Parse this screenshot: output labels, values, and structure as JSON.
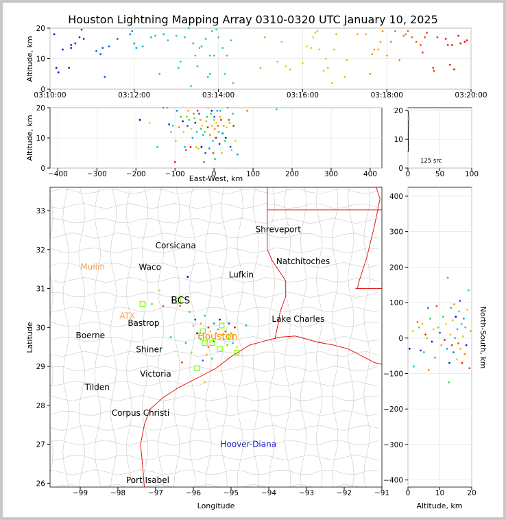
{
  "title": "Houston Lightning Mapping Array 0310-0320 UTC January 10, 2025",
  "source_count_label": "125 src",
  "colors": {
    "map_border": "#c8c8c8",
    "coast": "#e00000",
    "station": "#7cfc00",
    "storm": "#2020cc",
    "city_highlight": "#ff8c00",
    "grid": "#e6e6e6"
  },
  "chart_data": [
    {
      "id": "time_height",
      "type": "scatter",
      "xlabel": "",
      "ylabel": "Altitude, km",
      "x_ticks": [
        "03:10:00",
        "03:12:00",
        "03:14:00",
        "03:16:00",
        "03:18:00",
        "03:20:00"
      ],
      "y_ticks": [
        "0",
        "10",
        "20"
      ],
      "xlim_minutes": [
        0,
        10
      ],
      "ylim": [
        0,
        20
      ],
      "grid": true,
      "points": [
        [
          0.1,
          18
        ],
        [
          0.15,
          7
        ],
        [
          0.2,
          5.5
        ],
        [
          0.3,
          13
        ],
        [
          0.45,
          7
        ],
        [
          0.5,
          13.5
        ],
        [
          0.5,
          14.5
        ],
        [
          0.6,
          15
        ],
        [
          0.7,
          17
        ],
        [
          0.75,
          19.5
        ],
        [
          0.8,
          16.5
        ],
        [
          1.0,
          22
        ],
        [
          1.1,
          12.5
        ],
        [
          1.2,
          11.5
        ],
        [
          1.25,
          13.5
        ],
        [
          1.3,
          4
        ],
        [
          1.4,
          14
        ],
        [
          1.6,
          16.5
        ],
        [
          1.9,
          18
        ],
        [
          1.95,
          19
        ],
        [
          2.0,
          15
        ],
        [
          2.05,
          13.5
        ],
        [
          2.2,
          14
        ],
        [
          2.4,
          17
        ],
        [
          2.5,
          17.5
        ],
        [
          2.55,
          21
        ],
        [
          2.6,
          5
        ],
        [
          2.7,
          18
        ],
        [
          2.8,
          16
        ],
        [
          3.0,
          17.5
        ],
        [
          3.05,
          7
        ],
        [
          3.1,
          9
        ],
        [
          3.2,
          17
        ],
        [
          3.3,
          20
        ],
        [
          3.35,
          1
        ],
        [
          3.4,
          15
        ],
        [
          3.45,
          11
        ],
        [
          3.5,
          7.5
        ],
        [
          3.55,
          13.5
        ],
        [
          3.6,
          14
        ],
        [
          3.7,
          16.5
        ],
        [
          3.75,
          4
        ],
        [
          3.8,
          5
        ],
        [
          3.8,
          11
        ],
        [
          3.85,
          19
        ],
        [
          3.9,
          11
        ],
        [
          3.95,
          19.5
        ],
        [
          4.0,
          17
        ],
        [
          4.1,
          13.5
        ],
        [
          4.15,
          5
        ],
        [
          4.2,
          11
        ],
        [
          4.3,
          16
        ],
        [
          4.35,
          2
        ],
        [
          5.0,
          7
        ],
        [
          5.1,
          17
        ],
        [
          5.4,
          9
        ],
        [
          5.5,
          15.5
        ],
        [
          5.6,
          7.5
        ],
        [
          5.7,
          6.5
        ],
        [
          6.0,
          8.5
        ],
        [
          6.1,
          14
        ],
        [
          6.2,
          13.5
        ],
        [
          6.25,
          17
        ],
        [
          6.3,
          18.5
        ],
        [
          6.35,
          19
        ],
        [
          6.4,
          13
        ],
        [
          6.5,
          6
        ],
        [
          6.55,
          10
        ],
        [
          6.6,
          7
        ],
        [
          6.7,
          2
        ],
        [
          6.75,
          13
        ],
        [
          6.8,
          18
        ],
        [
          7.0,
          4
        ],
        [
          7.05,
          9.5
        ],
        [
          7.3,
          18
        ],
        [
          7.5,
          18
        ],
        [
          7.6,
          5
        ],
        [
          7.65,
          11.5
        ],
        [
          7.7,
          13
        ],
        [
          7.8,
          13
        ],
        [
          7.85,
          15.5
        ],
        [
          7.9,
          19
        ],
        [
          8.0,
          11
        ],
        [
          8.1,
          15.5
        ],
        [
          8.2,
          19
        ],
        [
          8.3,
          9.5
        ],
        [
          8.4,
          17.5
        ],
        [
          8.45,
          18
        ],
        [
          8.5,
          19
        ],
        [
          8.6,
          17
        ],
        [
          8.7,
          15.5
        ],
        [
          8.8,
          14.5
        ],
        [
          8.85,
          12
        ],
        [
          8.9,
          17
        ],
        [
          8.95,
          18.5
        ],
        [
          9.1,
          7
        ],
        [
          9.12,
          6
        ],
        [
          9.2,
          17
        ],
        [
          9.4,
          16.5
        ],
        [
          9.45,
          14.5
        ],
        [
          9.5,
          8
        ],
        [
          9.55,
          14.5
        ],
        [
          9.6,
          6.5
        ],
        [
          9.7,
          17.5
        ],
        [
          9.75,
          15
        ],
        [
          9.85,
          15.5
        ],
        [
          9.9,
          16
        ]
      ]
    },
    {
      "id": "ew_height",
      "type": "scatter",
      "xlabel": "East-West, km",
      "ylabel": "Altitude, km",
      "x_ticks": [
        "−400",
        "−300",
        "−200",
        "−100",
        "0",
        "100",
        "200",
        "300",
        "400"
      ],
      "y_ticks": [
        "0",
        "10",
        "20"
      ],
      "xlim": [
        -420,
        430
      ],
      "ylim": [
        0,
        20
      ],
      "grid": true,
      "points": [
        [
          -190,
          16
        ],
        [
          -165,
          15
        ],
        [
          -145,
          7
        ],
        [
          -130,
          20
        ],
        [
          -120,
          20
        ],
        [
          -115,
          14.5
        ],
        [
          -110,
          12
        ],
        [
          -105,
          14
        ],
        [
          -100,
          2
        ],
        [
          -98,
          9
        ],
        [
          -95,
          19
        ],
        [
          -90,
          13.5
        ],
        [
          -85,
          17
        ],
        [
          -80,
          15.5
        ],
        [
          -78,
          12
        ],
        [
          -75,
          7
        ],
        [
          -72,
          6
        ],
        [
          -70,
          17
        ],
        [
          -68,
          14
        ],
        [
          -66,
          19
        ],
        [
          -64,
          16
        ],
        [
          -60,
          7
        ],
        [
          -58,
          13
        ],
        [
          -55,
          10
        ],
        [
          -52,
          18
        ],
        [
          -50,
          16.5
        ],
        [
          -48,
          15
        ],
        [
          -46,
          7
        ],
        [
          -44,
          12
        ],
        [
          -42,
          19
        ],
        [
          -40,
          6.5
        ],
        [
          -38,
          18
        ],
        [
          -35,
          16
        ],
        [
          -33,
          13
        ],
        [
          -32,
          7
        ],
        [
          -30,
          14
        ],
        [
          -28,
          11
        ],
        [
          -26,
          2
        ],
        [
          -24,
          12
        ],
        [
          -22,
          5
        ],
        [
          -20,
          15.5
        ],
        [
          -18,
          17
        ],
        [
          -16,
          13.5
        ],
        [
          -15,
          20
        ],
        [
          -12,
          6.5
        ],
        [
          -10,
          11
        ],
        [
          -8,
          18
        ],
        [
          -6,
          19
        ],
        [
          -5,
          14
        ],
        [
          -3,
          9
        ],
        [
          -2,
          5
        ],
        [
          0,
          16
        ],
        [
          1,
          17
        ],
        [
          2,
          13
        ],
        [
          3,
          3
        ],
        [
          5,
          10
        ],
        [
          6,
          15
        ],
        [
          8,
          19
        ],
        [
          10,
          14
        ],
        [
          12,
          12
        ],
        [
          14,
          8
        ],
        [
          15,
          17
        ],
        [
          16,
          19
        ],
        [
          18,
          16
        ],
        [
          20,
          5
        ],
        [
          22,
          11.5
        ],
        [
          25,
          14
        ],
        [
          28,
          9
        ],
        [
          30,
          10
        ],
        [
          32,
          13.5
        ],
        [
          35,
          20
        ],
        [
          38,
          16
        ],
        [
          40,
          15
        ],
        [
          42,
          7
        ],
        [
          45,
          6
        ],
        [
          48,
          18
        ],
        [
          50,
          14
        ],
        [
          55,
          9
        ],
        [
          60,
          4.5
        ],
        [
          85,
          19
        ],
        [
          160,
          19.5
        ]
      ]
    },
    {
      "id": "height_histogram",
      "type": "bar",
      "xlabel": "",
      "ylabel": "",
      "x_ticks": [
        "0",
        "50",
        "100"
      ],
      "y_ticks": [
        "0",
        "10",
        "20"
      ],
      "xlim": [
        0,
        100
      ],
      "ylim": [
        0,
        21
      ],
      "grid": true,
      "annotation": "125 src",
      "bins": [
        [
          6,
          0.5
        ],
        [
          7,
          0.8
        ],
        [
          8,
          0.6
        ],
        [
          12,
          0.4
        ],
        [
          13,
          1.0
        ],
        [
          14,
          0.8
        ],
        [
          15,
          1.2
        ],
        [
          16,
          0.7
        ],
        [
          17,
          1.5
        ],
        [
          18,
          1.2
        ],
        [
          19,
          1.0
        ]
      ]
    },
    {
      "id": "plan_view",
      "type": "scatter",
      "xlabel": "Longitude",
      "ylabel": "Latitude",
      "x_ticks": [
        "−99",
        "−98",
        "−97",
        "−96",
        "−95",
        "−94",
        "−93",
        "−92",
        "−91"
      ],
      "y_ticks": [
        "26",
        "27",
        "28",
        "29",
        "30",
        "31",
        "32",
        "33"
      ],
      "xlim": [
        -99.8,
        -91
      ],
      "ylim": [
        25.9,
        33.6
      ],
      "grid": false,
      "cities": [
        {
          "name": "Shreveport",
          "lon": -93.75,
          "lat": 32.52
        },
        {
          "name": "Corsicana",
          "lon": -96.47,
          "lat": 32.1
        },
        {
          "name": "Mullin",
          "lon": -98.67,
          "lat": 31.56
        },
        {
          "name": "Waco",
          "lon": -97.15,
          "lat": 31.55
        },
        {
          "name": "Natchitoches",
          "lon": -93.09,
          "lat": 31.7
        },
        {
          "name": "Lufkin",
          "lon": -94.73,
          "lat": 31.35
        },
        {
          "name": "BCS",
          "lon": -96.34,
          "lat": 30.68
        },
        {
          "name": "ATX",
          "lon": -97.75,
          "lat": 30.3
        },
        {
          "name": "Bastrop",
          "lon": -97.32,
          "lat": 30.11
        },
        {
          "name": "Lake Charles",
          "lon": -93.22,
          "lat": 30.22
        },
        {
          "name": "Boerne",
          "lon": -98.73,
          "lat": 29.79
        },
        {
          "name": "Houston",
          "lon": -95.36,
          "lat": 29.76
        },
        {
          "name": "Shiner",
          "lon": -97.17,
          "lat": 29.43
        },
        {
          "name": "Victoria",
          "lon": -97.0,
          "lat": 28.81
        },
        {
          "name": "Tilden",
          "lon": -98.55,
          "lat": 28.46
        },
        {
          "name": "Corpus Christi",
          "lon": -97.4,
          "lat": 27.8
        },
        {
          "name": "Hoover-Diana",
          "lon": -94.54,
          "lat": 27.0
        },
        {
          "name": "Port Isabel",
          "lon": -97.21,
          "lat": 26.08
        }
      ],
      "stations": [
        [
          -97.35,
          30.6
        ],
        [
          -96.4,
          30.68
        ],
        [
          -95.75,
          29.9
        ],
        [
          -95.25,
          30.05
        ],
        [
          -95.5,
          29.6
        ],
        [
          -95.3,
          29.45
        ],
        [
          -95.7,
          29.6
        ],
        [
          -95.0,
          29.75
        ],
        [
          -94.85,
          29.35
        ],
        [
          -95.9,
          28.95
        ]
      ],
      "points": [
        [
          -96.15,
          31.3
        ],
        [
          -96.9,
          30.95
        ],
        [
          -96.55,
          30.7
        ],
        [
          -96.35,
          30.55
        ],
        [
          -96.1,
          30.4
        ],
        [
          -95.95,
          30.2
        ],
        [
          -95.8,
          30.1
        ],
        [
          -95.7,
          30.3
        ],
        [
          -95.6,
          30.0
        ],
        [
          -95.55,
          29.9
        ],
        [
          -95.45,
          30.1
        ],
        [
          -95.4,
          29.85
        ],
        [
          -95.35,
          29.95
        ],
        [
          -95.3,
          30.2
        ],
        [
          -95.25,
          29.8
        ],
        [
          -95.2,
          29.7
        ],
        [
          -95.15,
          29.9
        ],
        [
          -95.1,
          29.55
        ],
        [
          -95.05,
          30.1
        ],
        [
          -95.0,
          29.85
        ],
        [
          -94.95,
          29.6
        ],
        [
          -94.9,
          30.0
        ],
        [
          -94.85,
          29.5
        ],
        [
          -94.6,
          30.05
        ],
        [
          -95.6,
          29.5
        ],
        [
          -95.8,
          29.7
        ],
        [
          -95.9,
          29.85
        ],
        [
          -96.0,
          30.05
        ],
        [
          -96.2,
          29.6
        ],
        [
          -96.3,
          29.1
        ],
        [
          -96.05,
          29.35
        ],
        [
          -95.75,
          29.15
        ],
        [
          -95.65,
          29.3
        ],
        [
          -95.5,
          29.2
        ],
        [
          -95.45,
          29.65
        ],
        [
          -95.7,
          28.6
        ],
        [
          -96.6,
          29.75
        ],
        [
          -96.8,
          30.55
        ],
        [
          -97.1,
          30.6
        ]
      ]
    },
    {
      "id": "height_northsouth",
      "type": "scatter",
      "xlabel": "Altitude, km",
      "ylabel": "North-South, km",
      "x_ticks": [
        "0",
        "10",
        "20"
      ],
      "y_ticks": [
        "−400",
        "−300",
        "−200",
        "−100",
        "0",
        "100",
        "200",
        "300",
        "400"
      ],
      "xlim": [
        0,
        20
      ],
      "ylim": [
        -420,
        425
      ],
      "grid": true,
      "points": [
        [
          0.5,
          -30
        ],
        [
          1.5,
          20
        ],
        [
          1.8,
          -80
        ],
        [
          3,
          45
        ],
        [
          3.5,
          30
        ],
        [
          4,
          -35
        ],
        [
          4.5,
          40
        ],
        [
          5,
          -40
        ],
        [
          5.5,
          10
        ],
        [
          6,
          0
        ],
        [
          6.3,
          85
        ],
        [
          6.5,
          -90
        ],
        [
          7,
          55
        ],
        [
          7.5,
          -10
        ],
        [
          8,
          25
        ],
        [
          8.5,
          -55
        ],
        [
          9,
          90
        ],
        [
          9.5,
          30
        ],
        [
          10,
          15
        ],
        [
          10.5,
          -20
        ],
        [
          11,
          60
        ],
        [
          11.5,
          -5
        ],
        [
          12,
          40
        ],
        [
          12.3,
          -30
        ],
        [
          12.5,
          170
        ],
        [
          12.8,
          -125
        ],
        [
          13,
          -70
        ],
        [
          13.3,
          10
        ],
        [
          13.5,
          85
        ],
        [
          13.8,
          -20
        ],
        [
          14,
          50
        ],
        [
          14.3,
          -40
        ],
        [
          14.5,
          95
        ],
        [
          14.8,
          0
        ],
        [
          15,
          60
        ],
        [
          15.3,
          -60
        ],
        [
          15.5,
          25
        ],
        [
          15.8,
          -15
        ],
        [
          16,
          75
        ],
        [
          16.3,
          105
        ],
        [
          16.5,
          -30
        ],
        [
          16.8,
          40
        ],
        [
          17,
          -70
        ],
        [
          17.3,
          5
        ],
        [
          17.5,
          55
        ],
        [
          17.8,
          -45
        ],
        [
          18,
          30
        ],
        [
          18.3,
          -20
        ],
        [
          18.6,
          80
        ],
        [
          19,
          135
        ],
        [
          19.3,
          -85
        ],
        [
          19.6,
          20
        ]
      ]
    }
  ]
}
